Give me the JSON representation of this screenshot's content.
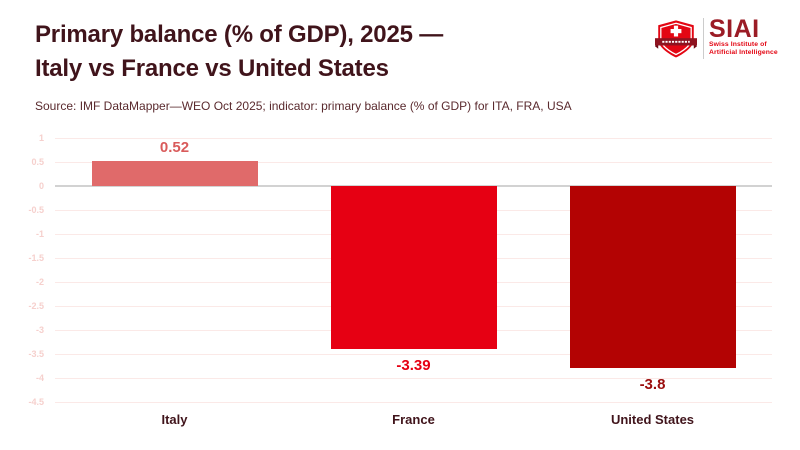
{
  "header": {
    "title_line1": "Primary balance (% of GDP), 2025 —",
    "title_line2": "Italy vs France vs United States",
    "subtitle": "Source: IMF DataMapper—WEO Oct 2025; indicator: primary balance (% of GDP) for ITA, FRA, USA"
  },
  "logo": {
    "acronym": "SIAI",
    "tagline_line1": "Swiss Institute of",
    "tagline_line2": "Artificial Intelligence"
  },
  "chart_data": {
    "type": "bar",
    "title": "Primary balance (% of GDP), 2025 — Italy vs France vs United States",
    "subtitle": "Source: IMF DataMapper—WEO Oct 2025; indicator: primary balance (% of GDP) for ITA, FRA, USA",
    "categories": [
      "Italy",
      "France",
      "United States"
    ],
    "values": [
      0.52,
      -3.39,
      -3.8
    ],
    "value_labels": [
      "0.52",
      "-3.39",
      "-3.8"
    ],
    "bar_colors": [
      "#e06a6a",
      "#e60013",
      "#b30303"
    ],
    "value_label_colors": [
      "#d95b5b",
      "#e60013",
      "#9b0d0d"
    ],
    "xlabel": "",
    "ylabel": "",
    "ylim": [
      -4.5,
      1
    ],
    "yticks": [
      1,
      0.5,
      0,
      -0.5,
      -1,
      -1.5,
      -2,
      -2.5,
      -3,
      -3.5,
      -4,
      -4.5
    ],
    "grid": true,
    "legend": false
  },
  "theme": {
    "background": "#ffffff",
    "title_color": "#40141b",
    "subtitle_color": "#5a2a2e",
    "gridline_color": "#fbe9e7",
    "zero_line_color": "#d2d2d2",
    "ytick_label_color": "#f6d0cd",
    "category_label_color": "#40141b",
    "logo_red": "#e30613",
    "logo_dark_red": "#9b1c26",
    "logo_ribbon": "#8e1320",
    "logo_divider_color": "#cccccc"
  }
}
